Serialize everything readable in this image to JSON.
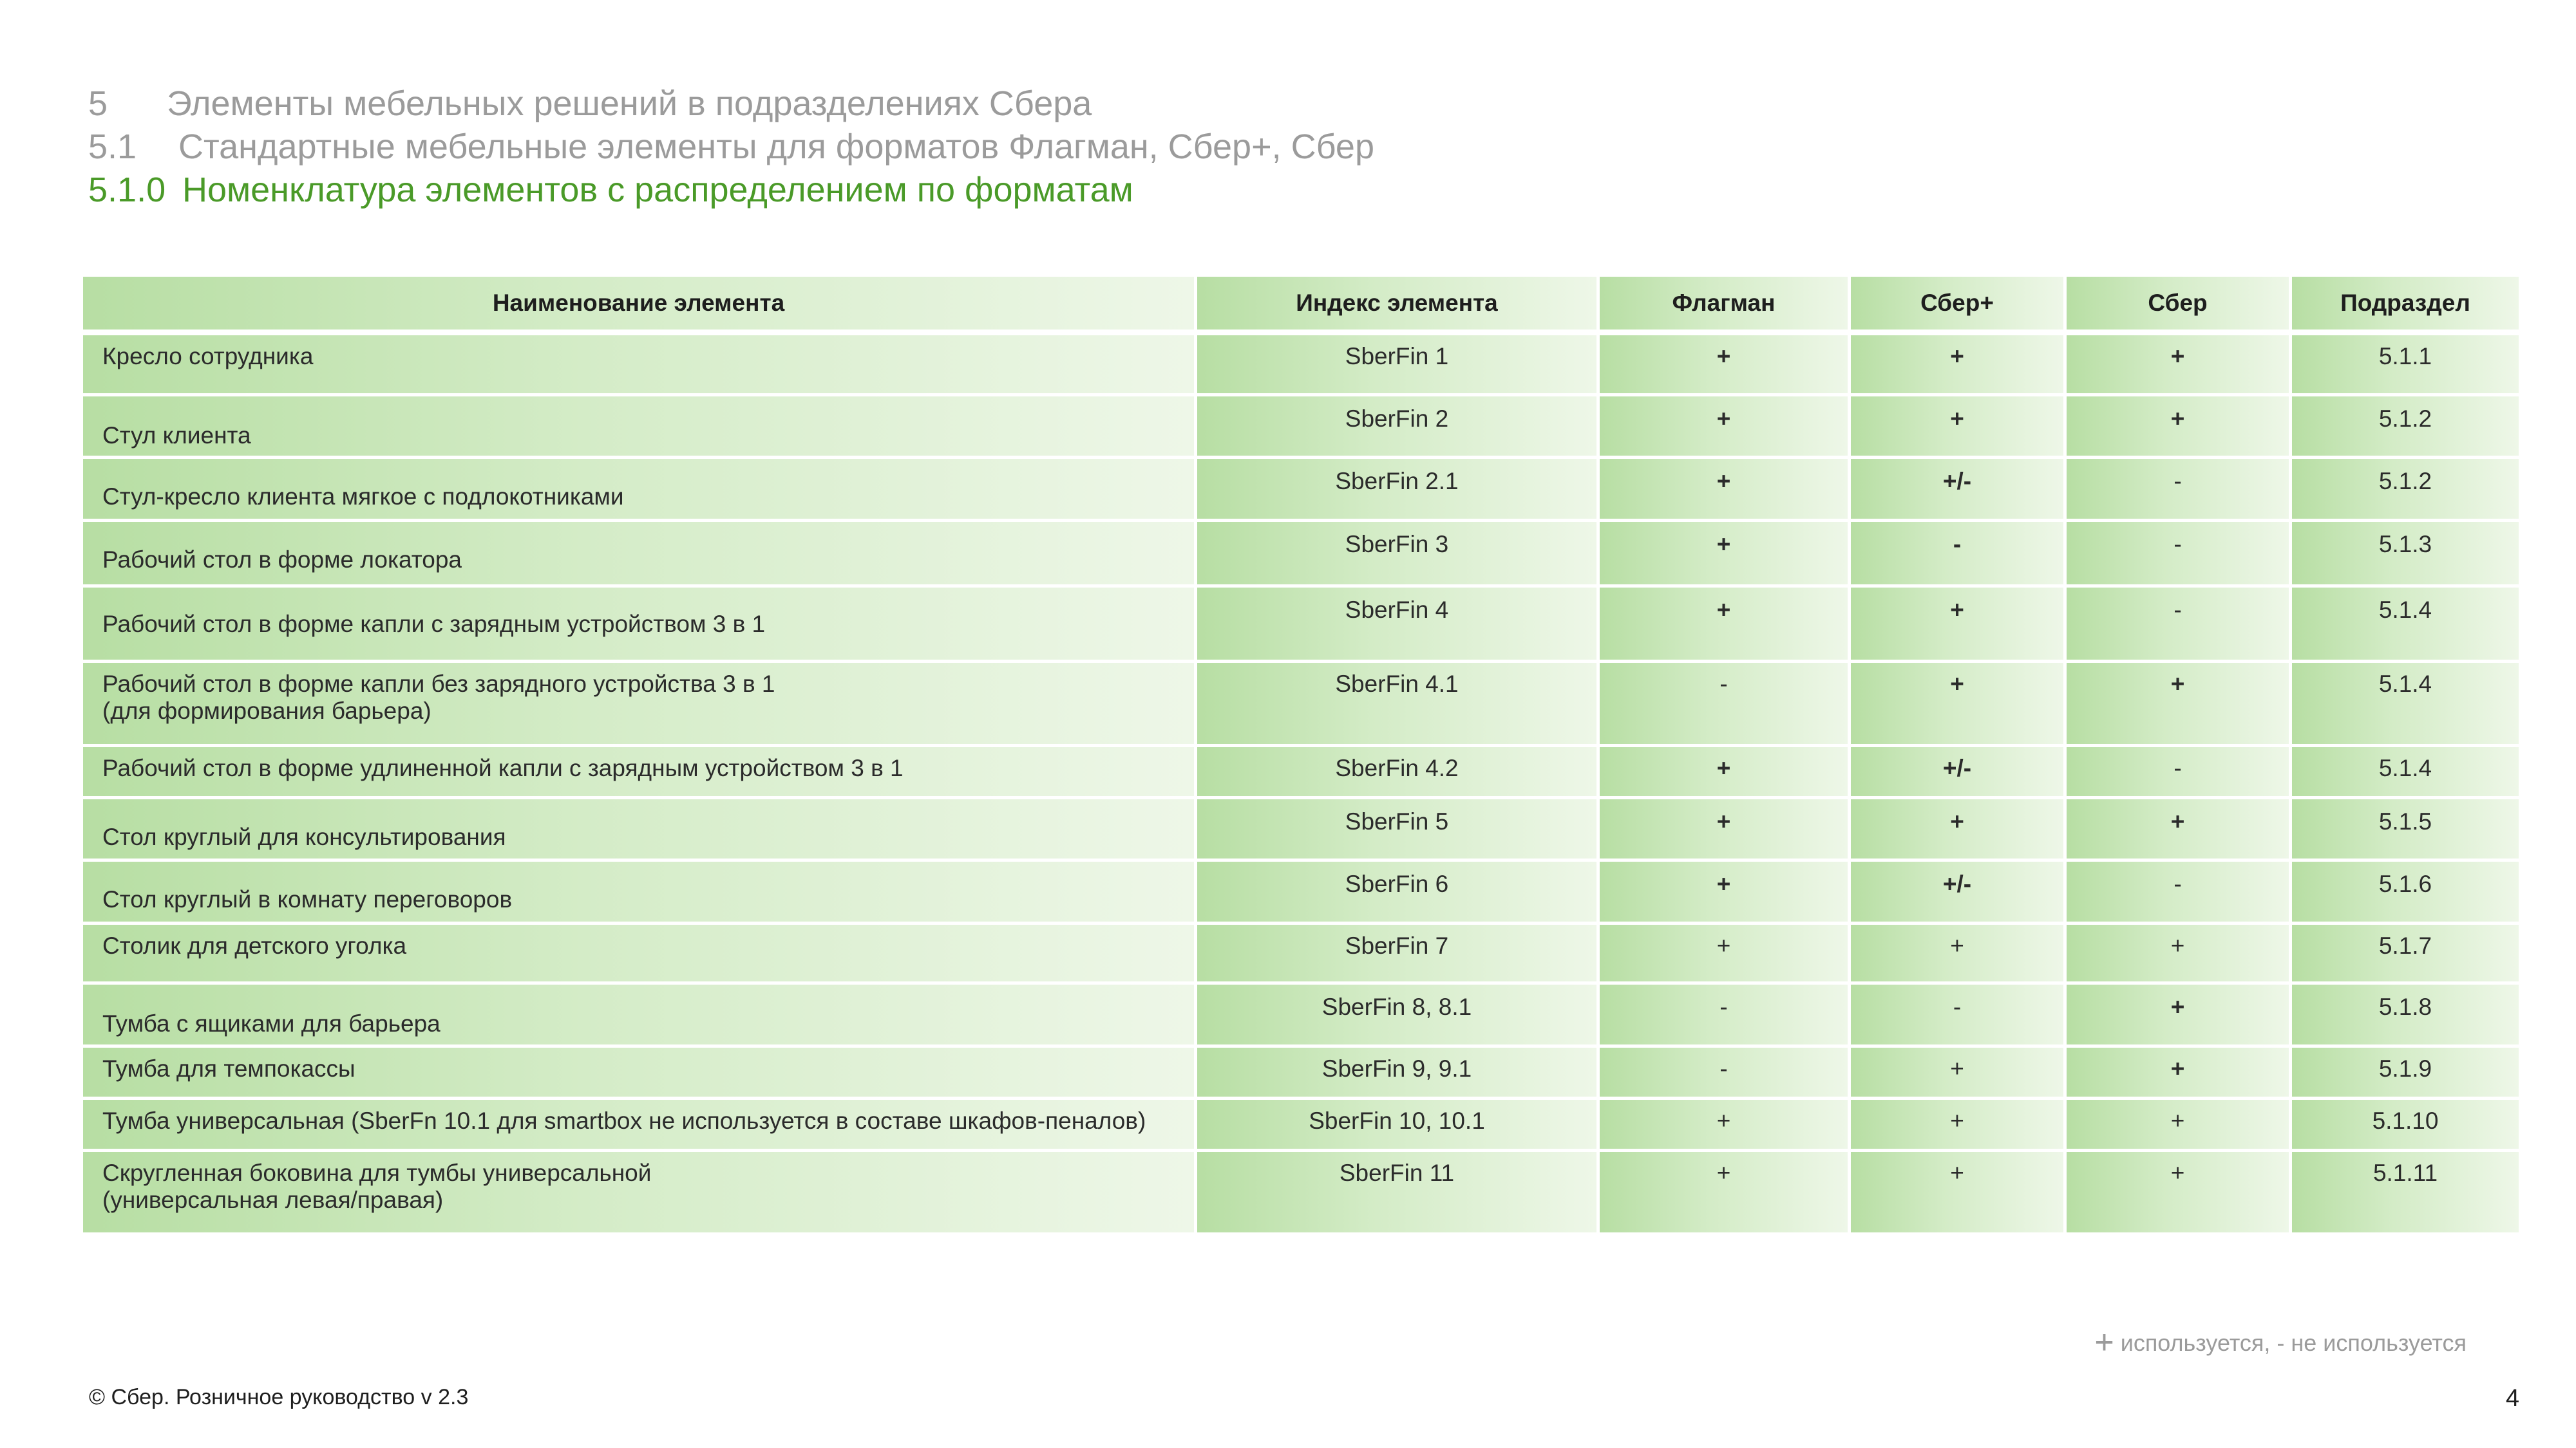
{
  "headings": [
    {
      "number": "5",
      "text": "Элементы мебельных решений в подразделениях Сбера"
    },
    {
      "number": "5.1",
      "text": "Стандартные мебельные элементы для форматов Флагман, Сбер+, Сбер"
    },
    {
      "number": "5.1.0",
      "text": "Номенклатура элементов с распределением по форматам"
    }
  ],
  "table": {
    "headers": [
      "Наименование элемента",
      "Индекс элемента",
      "Флагман",
      "Сбер+",
      "Сбер",
      "Подраздел"
    ],
    "rows": [
      {
        "name": "Кресло сотрудника",
        "name2": "",
        "index": "SberFin 1",
        "flagman": "+",
        "sberplus": "+",
        "sber": "+",
        "section": "5.1.1"
      },
      {
        "name": "Стул клиента",
        "name2": "",
        "index": "SberFin 2",
        "flagman": "+",
        "sberplus": "+",
        "sber": "+",
        "section": "5.1.2"
      },
      {
        "name": "Стул-кресло клиента мягкое с подлокотниками",
        "name2": "",
        "index": "SberFin 2.1",
        "flagman": "+",
        "sberplus": "+/-",
        "sber": "-",
        "section": "5.1.2"
      },
      {
        "name": "Рабочий стол в форме локатора",
        "name2": "",
        "index": "SberFin 3",
        "flagman": "+",
        "sberplus": "-",
        "sber": "-",
        "section": "5.1.3"
      },
      {
        "name": "Рабочий стол  в форме капли с зарядным устройством 3 в 1",
        "name2": "",
        "index": "SberFin 4",
        "flagman": "+",
        "sberplus": "+",
        "sber": "-",
        "section": "5.1.4"
      },
      {
        "name": "Рабочий стол  в форме капли без зарядного устройства 3 в 1",
        "name2": "(для формирования барьера)",
        "index": "SberFin  4.1",
        "flagman": "-",
        "sberplus": "+",
        "sber": "+",
        "section": "5.1.4"
      },
      {
        "name": "Рабочий стол в форме удлиненной капли с зарядным устройством 3 в 1",
        "name2": "",
        "index": "SberFin  4.2",
        "flagman": "+",
        "sberplus": "+/-",
        "sber": "-",
        "section": "5.1.4"
      },
      {
        "name": "Стол круглый для консультирования",
        "name2": "",
        "index": "SberFin 5",
        "flagman": "+",
        "sberplus": "+",
        "sber": "+",
        "section": "5.1.5"
      },
      {
        "name": "Стол круглый в комнату переговоров",
        "name2": "",
        "index": "SberFin 6",
        "flagman": "+",
        "sberplus": "+/-",
        "sber": "-",
        "section": "5.1.6"
      },
      {
        "name": "Столик для детского уголка",
        "name2": "",
        "index": "SberFin 7",
        "flagman": "+",
        "sberplus": "+",
        "sber": "+",
        "section": "5.1.7"
      },
      {
        "name": "Тумба с ящиками для барьера",
        "name2": "",
        "index": "SberFin 8, 8.1",
        "flagman": "-",
        "sberplus": "-",
        "sber": "+",
        "section": "5.1.8"
      },
      {
        "name": "Тумба для темпокассы",
        "name2": "",
        "index": "SberFin 9, 9.1",
        "flagman": "-",
        "sberplus": "+",
        "sber": "+",
        "section": "5.1.9"
      },
      {
        "name": "Тумба универсальная (SberFn 10.1 для smartbox не используется в составе шкафов-пеналов)",
        "name2": "",
        "index": "SberFin 10, 10.1",
        "flagman": "+",
        "sberplus": "+",
        "sber": "+",
        "section": "5.1.10"
      },
      {
        "name": "Скругленная боковина для тумбы универсальной",
        "name2": "(универсальная левая/правая)",
        "index": "SberFin 11",
        "flagman": "+",
        "sberplus": "+",
        "sber": "+",
        "section": "5.1.11"
      }
    ]
  },
  "legend": {
    "plus": "+",
    "text": " используется,  - не используется"
  },
  "footer": "© Сбер. Розничное руководство  v 2.3",
  "page_number": "4",
  "colors": {
    "accent_green": "#4a9a28",
    "heading_gray": "#9b9b9b",
    "minus_red": "#e0302a",
    "row_green": "#b7dea3"
  }
}
